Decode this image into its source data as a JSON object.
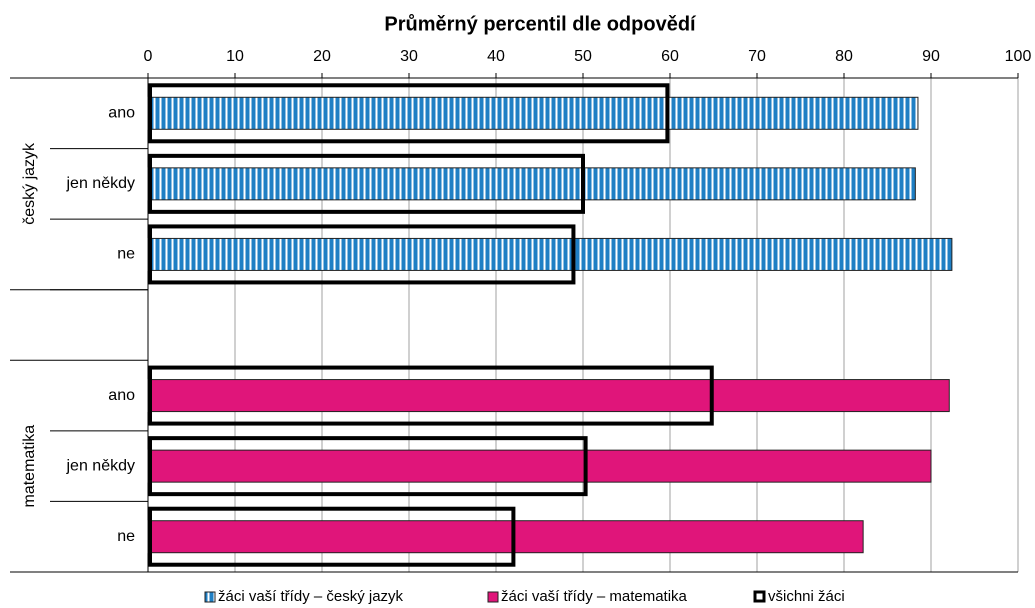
{
  "chart_data": {
    "type": "hbar",
    "title": "Průměrný percentil dle odpovědí",
    "groups": [
      {
        "name": "český jazyk",
        "categories": [
          "ano",
          "jen někdy",
          "ne"
        ]
      },
      {
        "name": "matematika",
        "categories": [
          "ano",
          "jen někdy",
          "ne"
        ]
      }
    ],
    "series": [
      {
        "name": "žáci vaší třídy – český jazyk",
        "color": "#1f7fc4",
        "hatch": true,
        "values": [
          88.5,
          88.2,
          92.4,
          null,
          null,
          null
        ]
      },
      {
        "name": "žáci vaší třídy – matematika",
        "color": "#e0157a",
        "values": [
          null,
          null,
          null,
          92.1,
          90.0,
          82.2
        ]
      },
      {
        "name": "všichni žáci",
        "color": "#000000",
        "outline": true,
        "values": [
          59.7,
          50.0,
          48.9,
          64.8,
          50.3,
          42.0
        ]
      }
    ],
    "xlim": [
      0,
      100
    ],
    "xticks": [
      0,
      10,
      20,
      30,
      40,
      50,
      60,
      70,
      80,
      90,
      100
    ],
    "grid": true,
    "legend": "bottom"
  }
}
